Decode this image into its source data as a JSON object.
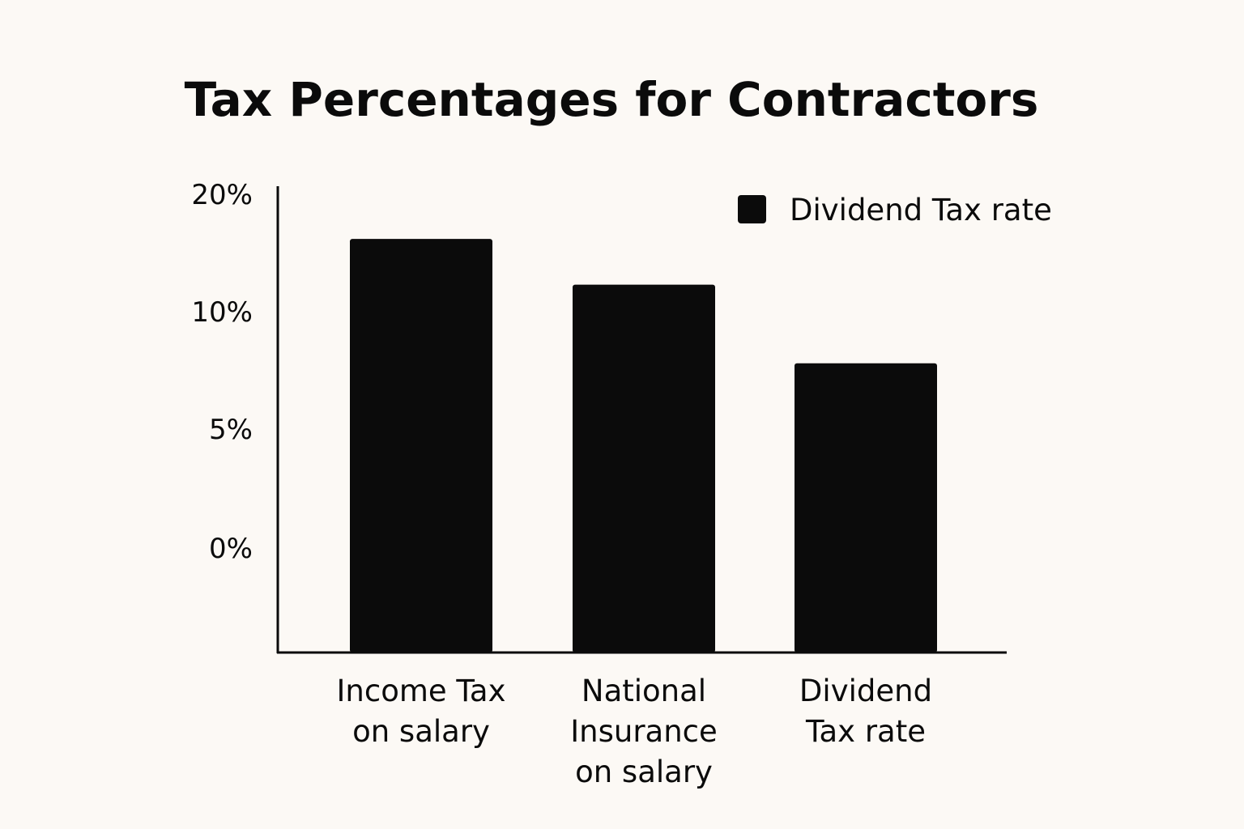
{
  "chart_data": {
    "type": "bar",
    "title": "Tax Percentages for Contractors",
    "categories": [
      [
        "Income Tax",
        "on salary"
      ],
      [
        "National",
        "Insurance",
        "on salary"
      ],
      [
        "Dividend",
        "Tax rate"
      ]
    ],
    "series": [
      {
        "name": "Dividend Tax rate",
        "values": [
          16.2,
          12.3,
          7.8
        ],
        "color": "#0b0b0b"
      }
    ],
    "y_ticks": [
      {
        "value": 0,
        "label": "0%"
      },
      {
        "value": 5,
        "label": "5%"
      },
      {
        "value": 10,
        "label": "10%"
      },
      {
        "value": 20,
        "label": "20%"
      }
    ],
    "xlabel": "",
    "ylabel": "",
    "ylim": [
      0,
      20
    ],
    "grid": false,
    "legend_position": "top-right"
  }
}
